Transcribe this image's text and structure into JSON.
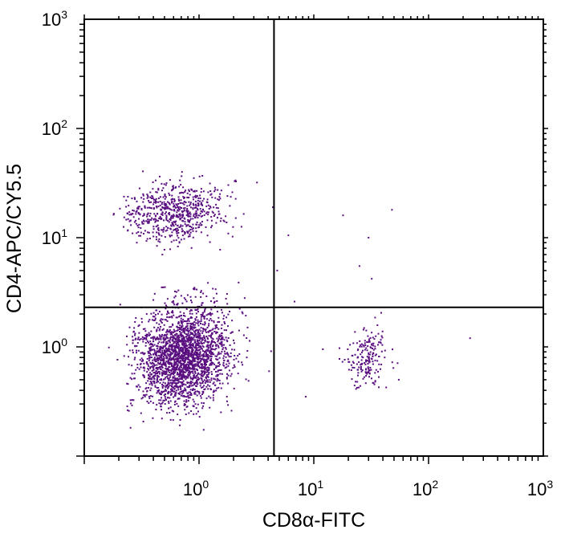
{
  "chart_data": {
    "type": "scatter",
    "title": "",
    "xlabel": "CD8α-FITC",
    "ylabel": "CD4-APC/CY5.5",
    "xscale": "log",
    "yscale": "log",
    "xlim": [
      0.1,
      1000
    ],
    "ylim": [
      0.1,
      1000
    ],
    "x_ticks": [
      {
        "base": "10",
        "exp": "0",
        "value": 1
      },
      {
        "base": "10",
        "exp": "1",
        "value": 10
      },
      {
        "base": "10",
        "exp": "2",
        "value": 100
      },
      {
        "base": "10",
        "exp": "3",
        "value": 1000
      }
    ],
    "y_ticks": [
      {
        "base": "10",
        "exp": "0",
        "value": 1
      },
      {
        "base": "10",
        "exp": "1",
        "value": 10
      },
      {
        "base": "10",
        "exp": "2",
        "value": 100
      },
      {
        "base": "10",
        "exp": "3",
        "value": 1000
      }
    ],
    "gates": {
      "x": 4.5,
      "y": 2.3
    },
    "point_color": "#5a0f80",
    "populations": [
      {
        "region": "lower-left",
        "center_x": 0.72,
        "center_y": 0.82,
        "spread_log_x": 0.2,
        "spread_log_y": 0.24,
        "count": 2400
      },
      {
        "region": "upper-left",
        "center_x": 0.62,
        "center_y": 17,
        "spread_log_x": 0.21,
        "spread_log_y": 0.14,
        "count": 650
      },
      {
        "region": "lower-right",
        "center_x": 29,
        "center_y": 0.8,
        "spread_log_x": 0.09,
        "spread_log_y": 0.17,
        "count": 190
      }
    ],
    "outliers": [
      [
        4.8,
        5.0
      ],
      [
        6.0,
        10.5
      ],
      [
        18,
        16
      ],
      [
        30,
        10
      ],
      [
        48,
        18
      ],
      [
        25,
        5.5
      ],
      [
        32,
        4.2
      ],
      [
        230,
        1.2
      ],
      [
        6.8,
        2.6
      ],
      [
        3.2,
        32
      ],
      [
        8.5,
        0.35
      ],
      [
        12,
        0.95
      ],
      [
        55,
        0.5
      ],
      [
        2.5,
        2.8
      ],
      [
        4.4,
        19
      ]
    ],
    "grid": false,
    "legend": "none"
  }
}
